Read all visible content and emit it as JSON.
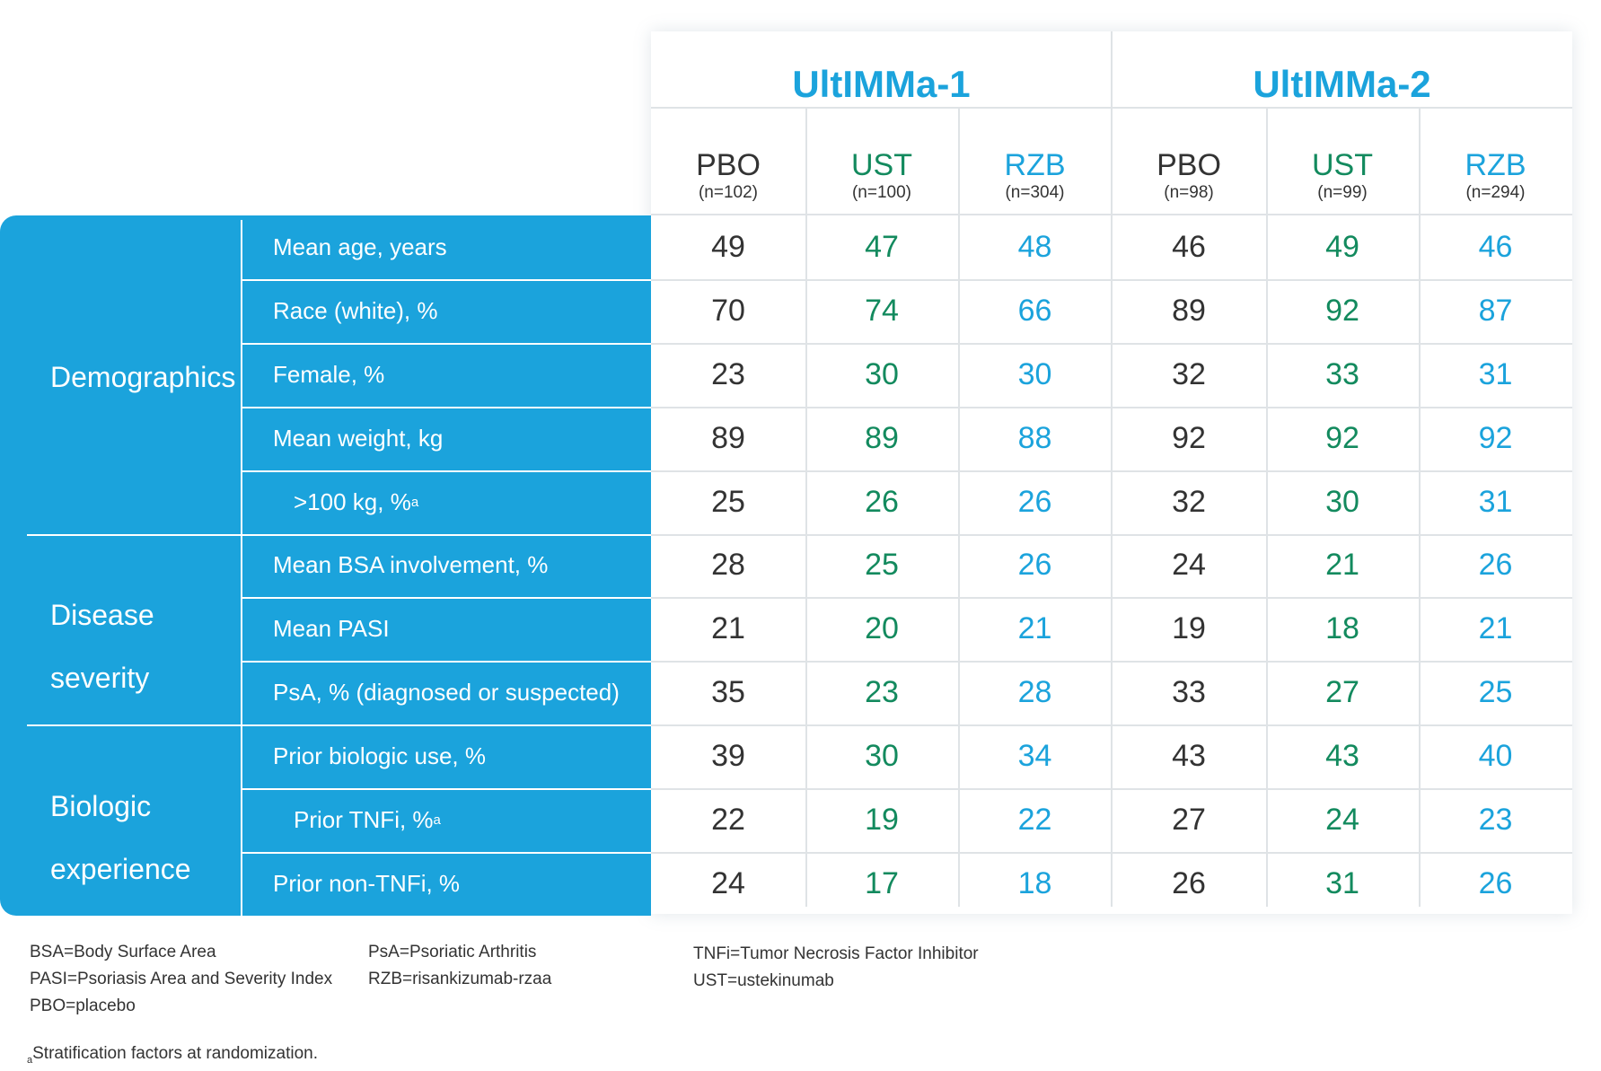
{
  "studies": [
    {
      "title": "UltIMMa-1",
      "arms": [
        {
          "abbr": "PBO",
          "n": "(n=102)"
        },
        {
          "abbr": "UST",
          "n": "(n=100)"
        },
        {
          "abbr": "RZB",
          "n": "(n=304)"
        }
      ]
    },
    {
      "title": "UltIMMa-2",
      "arms": [
        {
          "abbr": "PBO",
          "n": "(n=98)"
        },
        {
          "abbr": "UST",
          "n": "(n=99)"
        },
        {
          "abbr": "RZB",
          "n": "(n=294)"
        }
      ]
    }
  ],
  "categories": [
    {
      "lines": [
        "Demographics"
      ]
    },
    {
      "lines": [
        "Disease",
        "severity"
      ]
    },
    {
      "lines": [
        "Biologic",
        "experience"
      ]
    }
  ],
  "rows": [
    {
      "label": "Mean age, years",
      "sup": "",
      "values": [
        "49",
        "47",
        "48",
        "46",
        "49",
        "46"
      ]
    },
    {
      "label": "Race (white), %",
      "sup": "",
      "values": [
        "70",
        "74",
        "66",
        "89",
        "92",
        "87"
      ]
    },
    {
      "label": "Female, %",
      "sup": "",
      "values": [
        "23",
        "30",
        "30",
        "32",
        "33",
        "31"
      ]
    },
    {
      "label": "Mean weight, kg",
      "sup": "",
      "values": [
        "89",
        "89",
        "88",
        "92",
        "92",
        "92"
      ]
    },
    {
      "label": ">100 kg, %",
      "sup": "a",
      "values": [
        "25",
        "26",
        "26",
        "32",
        "30",
        "31"
      ]
    },
    {
      "label": "Mean BSA involvement, %",
      "sup": "",
      "values": [
        "28",
        "25",
        "26",
        "24",
        "21",
        "26"
      ]
    },
    {
      "label": "Mean PASI",
      "sup": "",
      "values": [
        "21",
        "20",
        "21",
        "19",
        "18",
        "21"
      ]
    },
    {
      "label": "PsA, % (diagnosed or suspected)",
      "sup": "",
      "values": [
        "35",
        "23",
        "28",
        "33",
        "27",
        "25"
      ]
    },
    {
      "label": "Prior biologic use, %",
      "sup": "",
      "values": [
        "39",
        "30",
        "34",
        "43",
        "43",
        "40"
      ]
    },
    {
      "label": "Prior TNFi, %",
      "sup": "a",
      "values": [
        "22",
        "19",
        "22",
        "27",
        "24",
        "23"
      ]
    },
    {
      "label": "Prior non-TNFi, %",
      "sup": "",
      "values": [
        "24",
        "17",
        "18",
        "26",
        "31",
        "26"
      ]
    }
  ],
  "footnotes": {
    "col1": [
      "BSA=Body Surface Area",
      "PASI=Psoriasis Area and Severity Index",
      "PBO=placebo"
    ],
    "col2": [
      "PsA=Psoriatic Arthritis",
      "RZB=risankizumab-rzaa"
    ],
    "col3": [
      "TNFi=Tumor Necrosis Factor Inhibitor",
      "UST=ustekinumab"
    ],
    "note_marker": "a",
    "note": "Stratification factors at randomization."
  },
  "colors": {
    "pbo": "#333333",
    "ust": "#138a5e",
    "rzb": "#1ba3dc",
    "panel": "#1ba3dc"
  }
}
